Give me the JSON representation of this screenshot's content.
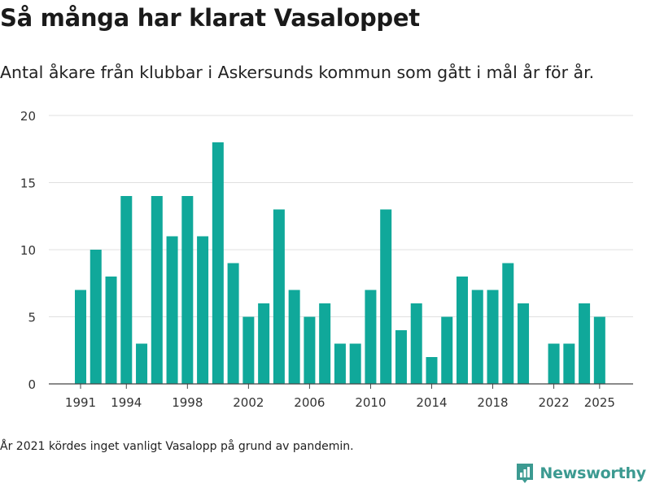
{
  "header": {
    "title": "Så många har klarat Vasaloppet",
    "subtitle": "Antal åkare från klubbar i Askersunds kommun som gått i mål år för år."
  },
  "footer": {
    "note": "År 2021 kördes inget vanligt Vasalopp på grund av pandemin.",
    "brand": "Newsworthy",
    "brand_icon": "bar-chart-bubble-icon"
  },
  "colors": {
    "bar": "#10a89a",
    "grid": "#e0e0e0",
    "axis": "#444444",
    "brand": "#3c9a91"
  },
  "chart_data": {
    "type": "bar",
    "title": "Så många har klarat Vasaloppet",
    "xlabel": "",
    "ylabel": "",
    "x": [
      1991,
      1992,
      1993,
      1994,
      1995,
      1996,
      1997,
      1998,
      1999,
      2000,
      2001,
      2002,
      2003,
      2004,
      2005,
      2006,
      2007,
      2008,
      2009,
      2010,
      2011,
      2012,
      2013,
      2014,
      2015,
      2016,
      2017,
      2018,
      2019,
      2020,
      2021,
      2022,
      2023,
      2024,
      2025
    ],
    "values": [
      7,
      10,
      8,
      14,
      3,
      14,
      11,
      14,
      11,
      18,
      9,
      5,
      6,
      13,
      7,
      5,
      6,
      3,
      3,
      7,
      13,
      4,
      6,
      2,
      5,
      8,
      7,
      7,
      9,
      6,
      null,
      3,
      3,
      6,
      5
    ],
    "x_tick_labels": [
      "1991",
      "1994",
      "1998",
      "2002",
      "2006",
      "2010",
      "2014",
      "2018",
      "2022",
      "2025"
    ],
    "y_ticks": [
      0,
      5,
      10,
      15,
      20
    ],
    "ylim": [
      0,
      20
    ],
    "grid": true,
    "legend": "none"
  }
}
